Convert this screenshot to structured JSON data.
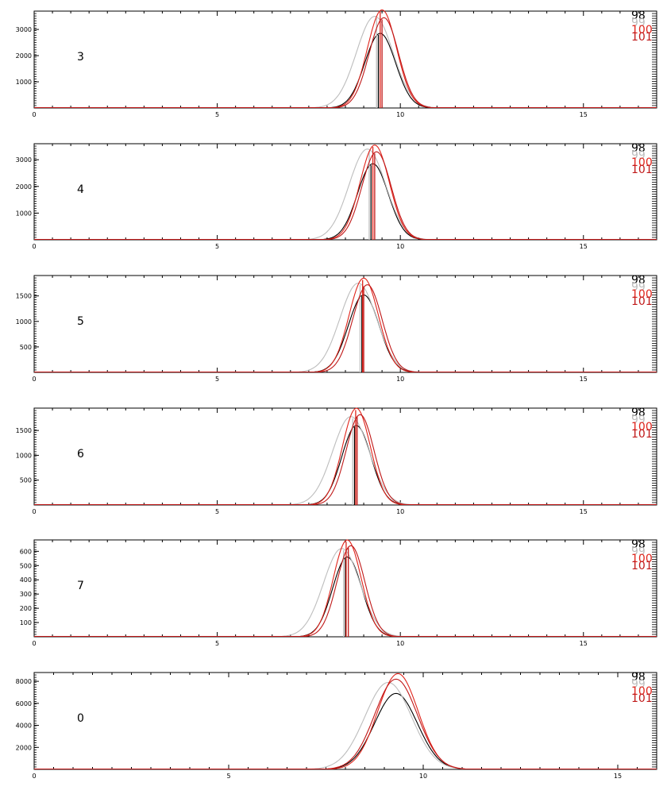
{
  "legend": [
    {
      "label": "98",
      "color": "#000000"
    },
    {
      "label": "99",
      "color": "#bdbdbd"
    },
    {
      "label": "100",
      "color": "#e0241b"
    },
    {
      "label": "101",
      "color": "#c01818"
    }
  ],
  "chart_data": [
    {
      "type": "line",
      "panel_label": "3",
      "xlim": [
        0,
        17
      ],
      "x_ticks": [
        0,
        5,
        10,
        15
      ],
      "ylim": [
        0,
        3700
      ],
      "y_ticks": [
        1000,
        2000,
        3000
      ],
      "series": [
        {
          "name": "98",
          "color": "#000000",
          "center": 9.45,
          "width": 0.42,
          "peak": 2850,
          "marker": 9.4
        },
        {
          "name": "99",
          "color": "#bdbdbd",
          "center": 9.3,
          "width": 0.5,
          "peak": 3500,
          "marker": 9.35
        },
        {
          "name": "100",
          "color": "#e0241b",
          "center": 9.5,
          "width": 0.4,
          "peak": 3750,
          "marker": 9.45
        },
        {
          "name": "101",
          "color": "#c01818",
          "center": 9.55,
          "width": 0.4,
          "peak": 3450,
          "marker": 9.5
        }
      ]
    },
    {
      "type": "line",
      "panel_label": "4",
      "xlim": [
        0,
        17
      ],
      "x_ticks": [
        0,
        5,
        10,
        15
      ],
      "ylim": [
        0,
        3600
      ],
      "y_ticks": [
        1000,
        2000,
        3000
      ],
      "series": [
        {
          "name": "98",
          "color": "#000000",
          "center": 9.25,
          "width": 0.42,
          "peak": 2850,
          "marker": 9.2
        },
        {
          "name": "99",
          "color": "#bdbdbd",
          "center": 9.1,
          "width": 0.5,
          "peak": 3400,
          "marker": 9.15
        },
        {
          "name": "100",
          "color": "#e0241b",
          "center": 9.3,
          "width": 0.4,
          "peak": 3550,
          "marker": 9.25
        },
        {
          "name": "101",
          "color": "#c01818",
          "center": 9.35,
          "width": 0.4,
          "peak": 3300,
          "marker": 9.3
        }
      ]
    },
    {
      "type": "line",
      "panel_label": "5",
      "xlim": [
        0,
        17
      ],
      "x_ticks": [
        0,
        5,
        10,
        15
      ],
      "ylim": [
        0,
        1900
      ],
      "y_ticks": [
        500,
        1000,
        1500
      ],
      "series": [
        {
          "name": "98",
          "color": "#000000",
          "center": 9.0,
          "width": 0.42,
          "peak": 1520,
          "marker": 8.95
        },
        {
          "name": "99",
          "color": "#bdbdbd",
          "center": 8.85,
          "width": 0.5,
          "peak": 1750,
          "marker": 8.9
        },
        {
          "name": "100",
          "color": "#e0241b",
          "center": 9.0,
          "width": 0.4,
          "peak": 1850,
          "marker": 8.97
        },
        {
          "name": "101",
          "color": "#c01818",
          "center": 9.1,
          "width": 0.4,
          "peak": 1720,
          "marker": 9.0
        }
      ]
    },
    {
      "type": "line",
      "panel_label": "6",
      "xlim": [
        0,
        17
      ],
      "x_ticks": [
        0,
        5,
        10,
        15
      ],
      "ylim": [
        0,
        1950
      ],
      "y_ticks": [
        500,
        1000,
        1500
      ],
      "series": [
        {
          "name": "98",
          "color": "#000000",
          "center": 8.8,
          "width": 0.4,
          "peak": 1600,
          "marker": 8.75
        },
        {
          "name": "99",
          "color": "#bdbdbd",
          "center": 8.65,
          "width": 0.5,
          "peak": 1780,
          "marker": 8.7
        },
        {
          "name": "100",
          "color": "#e0241b",
          "center": 8.8,
          "width": 0.38,
          "peak": 1950,
          "marker": 8.78
        },
        {
          "name": "101",
          "color": "#c01818",
          "center": 8.9,
          "width": 0.38,
          "peak": 1820,
          "marker": 8.82
        }
      ]
    },
    {
      "type": "line",
      "panel_label": "7",
      "xlim": [
        0,
        17
      ],
      "x_ticks": [
        0,
        5,
        10,
        15
      ],
      "ylim": [
        0,
        680
      ],
      "y_ticks": [
        100,
        200,
        300,
        400,
        500,
        600
      ],
      "series": [
        {
          "name": "98",
          "color": "#000000",
          "center": 8.55,
          "width": 0.4,
          "peak": 560,
          "marker": 8.5
        },
        {
          "name": "99",
          "color": "#bdbdbd",
          "center": 8.4,
          "width": 0.5,
          "peak": 620,
          "marker": 8.45
        },
        {
          "name": "100",
          "color": "#e0241b",
          "center": 8.55,
          "width": 0.38,
          "peak": 680,
          "marker": 8.52
        },
        {
          "name": "101",
          "color": "#c01818",
          "center": 8.65,
          "width": 0.38,
          "peak": 640,
          "marker": 8.58
        }
      ]
    },
    {
      "type": "line",
      "panel_label": "0",
      "xlim": [
        0,
        16
      ],
      "x_ticks": [
        0,
        5,
        10,
        15
      ],
      "ylim": [
        0,
        8800
      ],
      "y_ticks": [
        2000,
        4000,
        6000,
        8000
      ],
      "series": [
        {
          "name": "98",
          "color": "#000000",
          "center": 9.3,
          "width": 0.55,
          "peak": 6900
        },
        {
          "name": "99",
          "color": "#bdbdbd",
          "center": 9.1,
          "width": 0.6,
          "peak": 7900
        },
        {
          "name": "100",
          "color": "#e0241b",
          "center": 9.35,
          "width": 0.52,
          "peak": 8700
        },
        {
          "name": "101",
          "color": "#c01818",
          "center": 9.3,
          "width": 0.55,
          "peak": 8200
        }
      ]
    }
  ]
}
